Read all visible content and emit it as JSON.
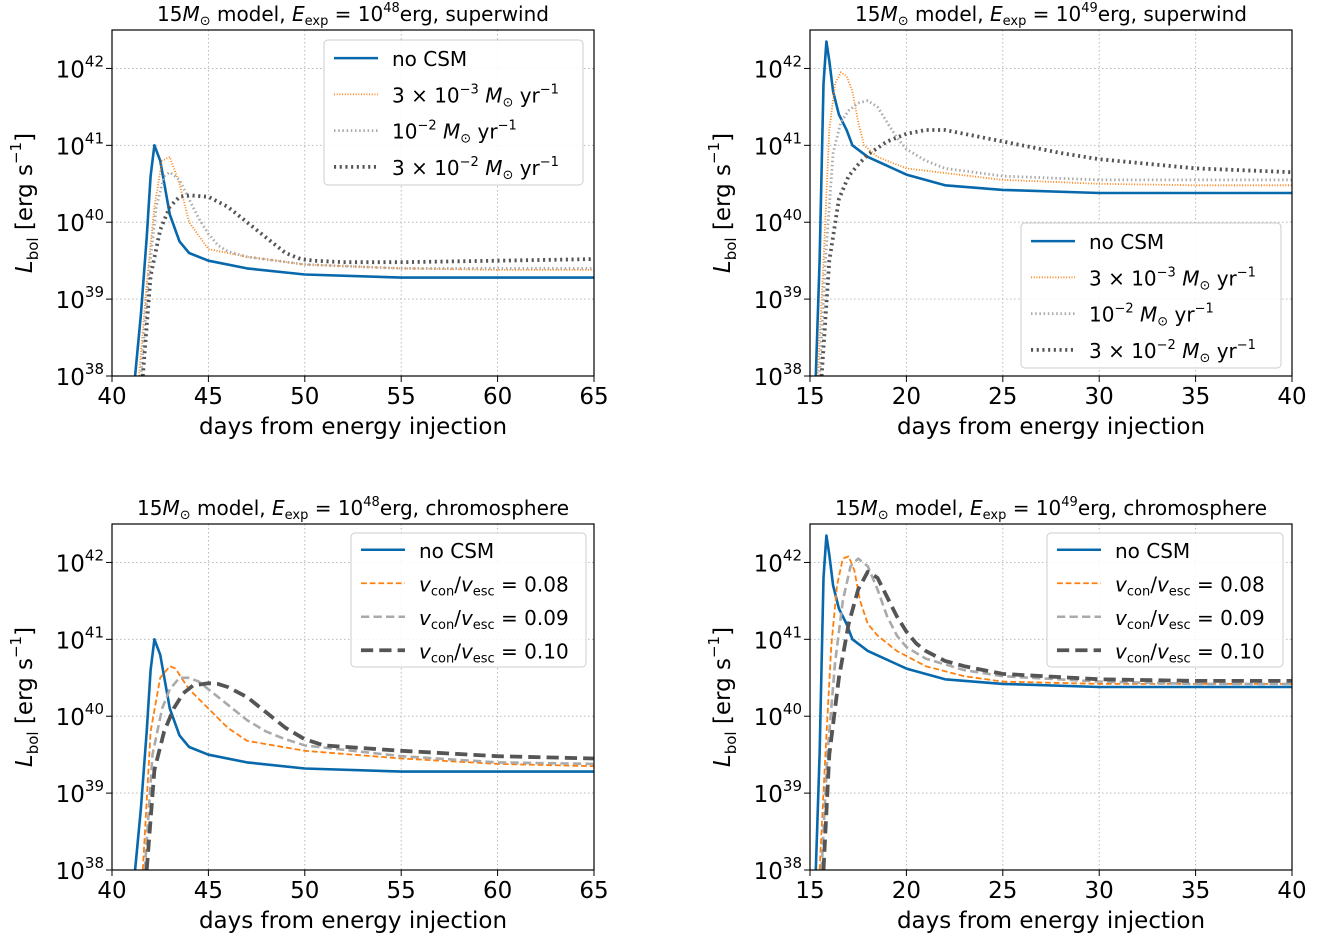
{
  "figure": {
    "ylabel_main": "L",
    "ylabel_sub": "bol",
    "ylabel_unit_pre": "[erg s",
    "ylabel_unit_exp": "−1",
    "ylabel_unit_post": "]",
    "xlabel": "days from energy injection"
  },
  "chart_data": [
    {
      "type": "line",
      "title": "15 M⊙ model, Eexp = 10^48 erg, superwind",
      "title_parts": {
        "mass": "15",
        "model": "model,",
        "exp": "48",
        "tail": "erg, superwind"
      },
      "xlabel": "days from energy injection",
      "ylabel": "Lbol [erg s^-1]",
      "xlim": [
        40,
        65
      ],
      "ylim_log10": [
        38,
        42.5
      ],
      "xticks": [
        40,
        45,
        50,
        55,
        60,
        65
      ],
      "yticks": [
        "10^38",
        "10^39",
        "10^40",
        "10^41",
        "10^42"
      ],
      "yscale": "log",
      "grid": true,
      "legend_loc": "top-right",
      "series": [
        {
          "name": "no CSM",
          "color": "#0868ac",
          "style": "solid",
          "width": 2.6,
          "x": [
            41.2,
            41.5,
            41.8,
            42.0,
            42.2,
            42.5,
            43.0,
            43.5,
            44.0,
            45.0,
            47.0,
            50.0,
            55.0,
            60.0,
            65.0
          ],
          "y": [
            38.0,
            38.8,
            39.8,
            40.6,
            41.0,
            40.8,
            40.1,
            39.75,
            39.6,
            39.5,
            39.4,
            39.32,
            39.28,
            39.28,
            39.28
          ]
        },
        {
          "name": "3×10^-3 M⊙ yr^-1",
          "color": "#ff7f0e",
          "style": "dotted",
          "width": 1.8,
          "x": [
            41.4,
            41.8,
            42.2,
            42.6,
            43.0,
            43.5,
            44.0,
            45.0,
            47.0,
            50.0,
            55.0,
            60.0,
            65.0
          ],
          "y": [
            38.0,
            39.2,
            40.2,
            40.8,
            40.85,
            40.5,
            40.0,
            39.65,
            39.55,
            39.45,
            39.4,
            39.38,
            39.38
          ]
        },
        {
          "name": "10^-2 M⊙ yr^-1",
          "color": "#aaaaaa",
          "style": "dotted",
          "width": 2.8,
          "x": [
            41.5,
            41.9,
            42.3,
            42.7,
            43.0,
            43.5,
            44.0,
            44.5,
            45.0,
            45.5,
            46.0,
            47.0,
            50.0,
            55.0,
            60.0,
            65.0
          ],
          "y": [
            38.0,
            39.3,
            40.2,
            40.6,
            40.65,
            40.55,
            40.3,
            40.05,
            39.85,
            39.7,
            39.62,
            39.55,
            39.45,
            39.4,
            39.4,
            39.4
          ]
        },
        {
          "name": "3×10^-2 M⊙ yr^-1",
          "color": "#555555",
          "style": "dotted",
          "width": 3.8,
          "x": [
            41.6,
            42.0,
            42.5,
            43.0,
            43.5,
            44.0,
            45.0,
            46.0,
            47.0,
            48.0,
            49.0,
            49.8,
            50.5,
            52.0,
            55.0,
            60.0,
            65.0
          ],
          "y": [
            38.0,
            39.3,
            39.9,
            40.2,
            40.33,
            40.35,
            40.33,
            40.2,
            40.0,
            39.8,
            39.6,
            39.52,
            39.5,
            39.48,
            39.48,
            39.5,
            39.52
          ]
        }
      ]
    },
    {
      "type": "line",
      "title": "15 M⊙ model, Eexp = 10^49 erg, superwind",
      "title_parts": {
        "mass": "15",
        "model": "model,",
        "exp": "49",
        "tail": "erg, superwind"
      },
      "xlabel": "days from energy injection",
      "ylabel": "Lbol [erg s^-1]",
      "xlim": [
        15,
        40
      ],
      "ylim_log10": [
        38,
        42.5
      ],
      "xticks": [
        15,
        20,
        25,
        30,
        35,
        40
      ],
      "yticks": [
        "10^38",
        "10^39",
        "10^40",
        "10^41",
        "10^42"
      ],
      "yscale": "log",
      "grid": true,
      "legend_loc": "bottom-right",
      "series": [
        {
          "name": "no CSM",
          "color": "#0868ac",
          "style": "solid",
          "width": 2.6,
          "x": [
            15.3,
            15.5,
            15.7,
            15.85,
            16.0,
            16.2,
            16.5,
            16.9,
            17.2,
            18.0,
            20.0,
            22.0,
            25.0,
            30.0,
            35.0,
            40.0
          ],
          "y": [
            38.0,
            39.5,
            41.8,
            42.35,
            42.1,
            41.7,
            41.4,
            41.2,
            41.0,
            40.85,
            40.62,
            40.48,
            40.42,
            40.38,
            40.38,
            40.38
          ]
        },
        {
          "name": "3×10^-3 M⊙ yr^-1",
          "color": "#ff7f0e",
          "style": "dotted",
          "width": 1.8,
          "x": [
            15.4,
            15.7,
            16.0,
            16.3,
            16.6,
            16.9,
            17.2,
            17.5,
            17.8,
            18.5,
            20.0,
            25.0,
            30.0,
            35.0,
            40.0
          ],
          "y": [
            38.0,
            39.5,
            41.2,
            41.8,
            41.95,
            41.9,
            41.7,
            41.3,
            41.0,
            40.85,
            40.7,
            40.55,
            40.5,
            40.48,
            40.48
          ]
        },
        {
          "name": "10^-2 M⊙ yr^-1",
          "color": "#aaaaaa",
          "style": "dotted",
          "width": 2.8,
          "x": [
            15.5,
            15.8,
            16.2,
            16.6,
            17.0,
            17.5,
            18.0,
            18.5,
            19.0,
            19.5,
            20.0,
            21.0,
            22.0,
            25.0,
            30.0,
            35.0,
            40.0
          ],
          "y": [
            38.0,
            39.5,
            40.9,
            41.3,
            41.45,
            41.55,
            41.58,
            41.5,
            41.3,
            41.1,
            40.95,
            40.8,
            40.7,
            40.6,
            40.55,
            40.55,
            40.55
          ]
        },
        {
          "name": "3×10^-2 M⊙ yr^-1",
          "color": "#555555",
          "style": "dotted",
          "width": 3.8,
          "x": [
            15.6,
            16.0,
            16.5,
            17.0,
            17.5,
            18.0,
            19.0,
            20.0,
            21.0,
            22.0,
            23.0,
            25.0,
            28.0,
            30.0,
            35.0,
            40.0
          ],
          "y": [
            38.0,
            39.5,
            40.3,
            40.6,
            40.75,
            40.88,
            41.05,
            41.15,
            41.2,
            41.2,
            41.15,
            41.05,
            40.9,
            40.82,
            40.7,
            40.65
          ]
        }
      ]
    },
    {
      "type": "line",
      "title": "15 M⊙ model, Eexp = 10^48 erg, chromosphere",
      "title_parts": {
        "mass": "15",
        "model": "model,",
        "exp": "48",
        "tail": "erg, chromosphere"
      },
      "xlabel": "days from energy injection",
      "ylabel": "Lbol [erg s^-1]",
      "xlim": [
        40,
        65
      ],
      "ylim_log10": [
        38,
        42.5
      ],
      "xticks": [
        40,
        45,
        50,
        55,
        60,
        65
      ],
      "yticks": [
        "10^38",
        "10^39",
        "10^40",
        "10^41",
        "10^42"
      ],
      "yscale": "log",
      "grid": true,
      "legend_loc": "top-right",
      "series": [
        {
          "name": "no CSM",
          "color": "#0868ac",
          "style": "solid",
          "width": 2.6,
          "x": [
            41.2,
            41.5,
            41.8,
            42.0,
            42.2,
            42.5,
            43.0,
            43.5,
            44.0,
            45.0,
            47.0,
            50.0,
            55.0,
            60.0,
            65.0
          ],
          "y": [
            38.0,
            38.8,
            39.8,
            40.6,
            41.0,
            40.8,
            40.1,
            39.75,
            39.6,
            39.5,
            39.4,
            39.32,
            39.28,
            39.28,
            39.28
          ]
        },
        {
          "name": "v_con/v_esc = 0.08",
          "color": "#ff7f0e",
          "style": "dashed",
          "width": 1.8,
          "x": [
            41.6,
            42.0,
            42.5,
            43.0,
            43.3,
            43.6,
            44.0,
            45.0,
            46.0,
            47.0,
            50.0,
            55.0,
            60.0,
            65.0
          ],
          "y": [
            38.0,
            39.8,
            40.5,
            40.65,
            40.62,
            40.5,
            40.35,
            40.1,
            39.85,
            39.68,
            39.55,
            39.45,
            39.38,
            39.35
          ]
        },
        {
          "name": "v_con/v_esc = 0.09",
          "color": "#aaaaaa",
          "style": "dashed",
          "width": 2.6,
          "x": [
            41.7,
            42.1,
            42.6,
            43.0,
            43.5,
            44.0,
            44.5,
            45.0,
            46.0,
            47.0,
            48.0,
            49.0,
            50.0,
            55.0,
            60.0,
            65.0
          ],
          "y": [
            38.0,
            39.5,
            40.1,
            40.35,
            40.5,
            40.5,
            40.45,
            40.35,
            40.15,
            39.95,
            39.8,
            39.7,
            39.62,
            39.48,
            39.4,
            39.38
          ]
        },
        {
          "name": "v_con/v_esc = 0.10",
          "color": "#555555",
          "style": "dashed",
          "width": 3.8,
          "x": [
            41.8,
            42.2,
            42.7,
            43.2,
            43.7,
            44.2,
            45.0,
            45.5,
            46.0,
            47.0,
            48.0,
            49.0,
            50.0,
            51.0,
            55.0,
            60.0,
            65.0
          ],
          "y": [
            38.0,
            39.3,
            39.8,
            40.1,
            40.3,
            40.4,
            40.43,
            40.42,
            40.38,
            40.25,
            40.05,
            39.85,
            39.7,
            39.62,
            39.55,
            39.48,
            39.45
          ]
        }
      ]
    },
    {
      "type": "line",
      "title": "15 M⊙ model, Eexp = 10^49 erg, chromosphere",
      "title_parts": {
        "mass": "15",
        "model": "model,",
        "exp": "49",
        "tail": "erg, chromosphere"
      },
      "xlabel": "days from energy injection",
      "ylabel": "Lbol [erg s^-1]",
      "xlim": [
        15,
        40
      ],
      "ylim_log10": [
        38,
        42.5
      ],
      "xticks": [
        15,
        20,
        25,
        30,
        35,
        40
      ],
      "yticks": [
        "10^38",
        "10^39",
        "10^40",
        "10^41",
        "10^42"
      ],
      "yscale": "log",
      "grid": true,
      "legend_loc": "top-right",
      "series": [
        {
          "name": "no CSM",
          "color": "#0868ac",
          "style": "solid",
          "width": 2.6,
          "x": [
            15.3,
            15.5,
            15.7,
            15.85,
            16.0,
            16.2,
            16.5,
            16.9,
            17.2,
            18.0,
            20.0,
            22.0,
            25.0,
            30.0,
            35.0,
            40.0
          ],
          "y": [
            38.0,
            39.5,
            41.8,
            42.35,
            42.1,
            41.7,
            41.4,
            41.2,
            41.0,
            40.85,
            40.62,
            40.48,
            40.42,
            40.38,
            40.38,
            40.38
          ]
        },
        {
          "name": "v_con/v_esc = 0.08",
          "color": "#ff7f0e",
          "style": "dashed",
          "width": 1.8,
          "x": [
            15.5,
            15.8,
            16.1,
            16.4,
            16.7,
            17.0,
            17.3,
            17.6,
            18.0,
            18.5,
            19.5,
            21.0,
            23.0,
            25.0,
            30.0,
            35.0,
            40.0
          ],
          "y": [
            38.0,
            39.5,
            40.9,
            41.7,
            42.05,
            42.08,
            41.9,
            41.5,
            41.2,
            41.05,
            40.85,
            40.65,
            40.52,
            40.45,
            40.42,
            40.42,
            40.42
          ]
        },
        {
          "name": "v_con/v_esc = 0.09",
          "color": "#aaaaaa",
          "style": "dashed",
          "width": 2.6,
          "x": [
            15.6,
            15.9,
            16.3,
            16.7,
            17.1,
            17.5,
            18.0,
            18.5,
            19.0,
            19.5,
            20.0,
            21.0,
            23.0,
            25.0,
            30.0,
            35.0,
            40.0
          ],
          "y": [
            38.0,
            39.5,
            40.7,
            41.5,
            41.95,
            42.05,
            41.95,
            41.65,
            41.3,
            41.05,
            40.9,
            40.75,
            40.6,
            40.52,
            40.45,
            40.42,
            40.42
          ]
        },
        {
          "name": "v_con/v_esc = 0.10",
          "color": "#555555",
          "style": "dashed",
          "width": 3.8,
          "x": [
            15.7,
            16.0,
            16.5,
            17.0,
            17.5,
            18.0,
            18.5,
            19.0,
            19.5,
            20.0,
            20.5,
            21.0,
            22.0,
            23.0,
            25.0,
            30.0,
            35.0,
            40.0
          ],
          "y": [
            38.0,
            39.5,
            40.5,
            41.2,
            41.65,
            41.88,
            41.8,
            41.55,
            41.3,
            41.1,
            40.95,
            40.85,
            40.72,
            40.65,
            40.55,
            40.48,
            40.46,
            40.46
          ]
        }
      ]
    }
  ]
}
